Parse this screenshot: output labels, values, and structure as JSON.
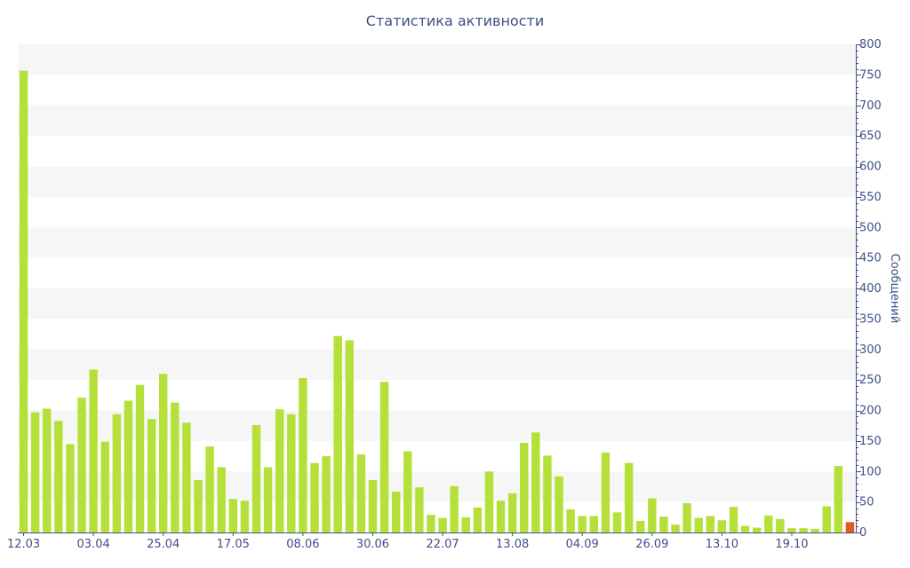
{
  "chart_data": {
    "type": "bar",
    "title": "Статистика активности",
    "ylabel": "Сообщений",
    "xlabel": "",
    "ylim": [
      0,
      800
    ],
    "y_ticks": [
      0,
      50,
      100,
      150,
      200,
      250,
      300,
      350,
      400,
      450,
      500,
      550,
      600,
      650,
      700,
      750,
      800
    ],
    "y_axis_side": "right",
    "grid": "alternating horizontal bands",
    "legend": "none",
    "x_tick_labels": [
      {
        "index": 0,
        "label": "12.03"
      },
      {
        "index": 6,
        "label": "03.04"
      },
      {
        "index": 12,
        "label": "25.04"
      },
      {
        "index": 18,
        "label": "17.05"
      },
      {
        "index": 24,
        "label": "08.06"
      },
      {
        "index": 30,
        "label": "30.06"
      },
      {
        "index": 36,
        "label": "22.07"
      },
      {
        "index": 42,
        "label": "13.08"
      },
      {
        "index": 48,
        "label": "04.09"
      },
      {
        "index": 54,
        "label": "26.09"
      },
      {
        "index": 60,
        "label": "13.10"
      },
      {
        "index": 66,
        "label": "19.10"
      }
    ],
    "values": [
      757,
      197,
      203,
      183,
      145,
      221,
      267,
      149,
      194,
      216,
      242,
      186,
      260,
      213,
      180,
      86,
      141,
      107,
      55,
      52,
      176,
      107,
      202,
      194,
      253,
      114,
      125,
      322,
      315,
      128,
      86,
      247,
      67,
      133,
      74,
      29,
      24,
      76,
      25,
      41,
      100,
      52,
      64,
      147,
      164,
      126,
      92,
      38,
      27,
      27,
      131,
      33,
      114,
      19,
      56,
      26,
      13,
      48,
      24,
      27,
      20,
      42,
      11,
      8,
      28,
      22,
      7,
      7,
      6,
      43,
      109,
      17
    ],
    "colors": {
      "bar": "#b5e03a",
      "bar_highlight": "#e05a28",
      "band": "#f6f6f6",
      "axis": "#3e4f88"
    },
    "highlight_last": true
  }
}
